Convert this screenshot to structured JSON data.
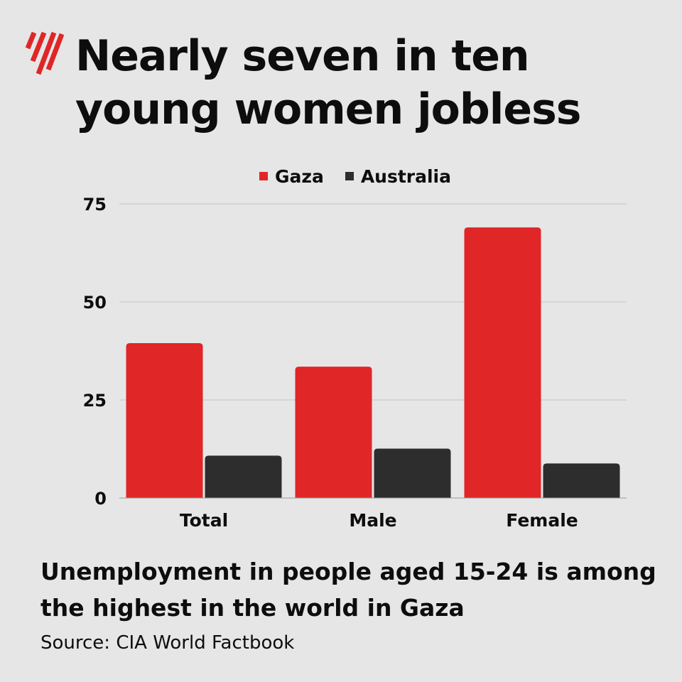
{
  "header": {
    "title": "Nearly seven in ten young women jobless",
    "logo_icon": "sbs-logo-icon"
  },
  "chart_data": {
    "type": "bar",
    "title": "Nearly seven in ten young women jobless",
    "categories": [
      "Total",
      "Male",
      "Female"
    ],
    "series": [
      {
        "name": "Gaza",
        "values": [
          39.5,
          33.5,
          69
        ],
        "color": "#e02626"
      },
      {
        "name": "Australia",
        "values": [
          10.8,
          12.6,
          8.8
        ],
        "color": "#2d2d2d"
      }
    ],
    "yticks": [
      0,
      25,
      50,
      75
    ],
    "ylim": [
      0,
      75
    ],
    "xlabel": "",
    "ylabel": "",
    "grid": true,
    "legend_position": "top-center"
  },
  "footer": {
    "subtitle": "Unemployment in people aged 15-24 is among the highest in the world in Gaza",
    "source": "Source: CIA World Factbook"
  }
}
